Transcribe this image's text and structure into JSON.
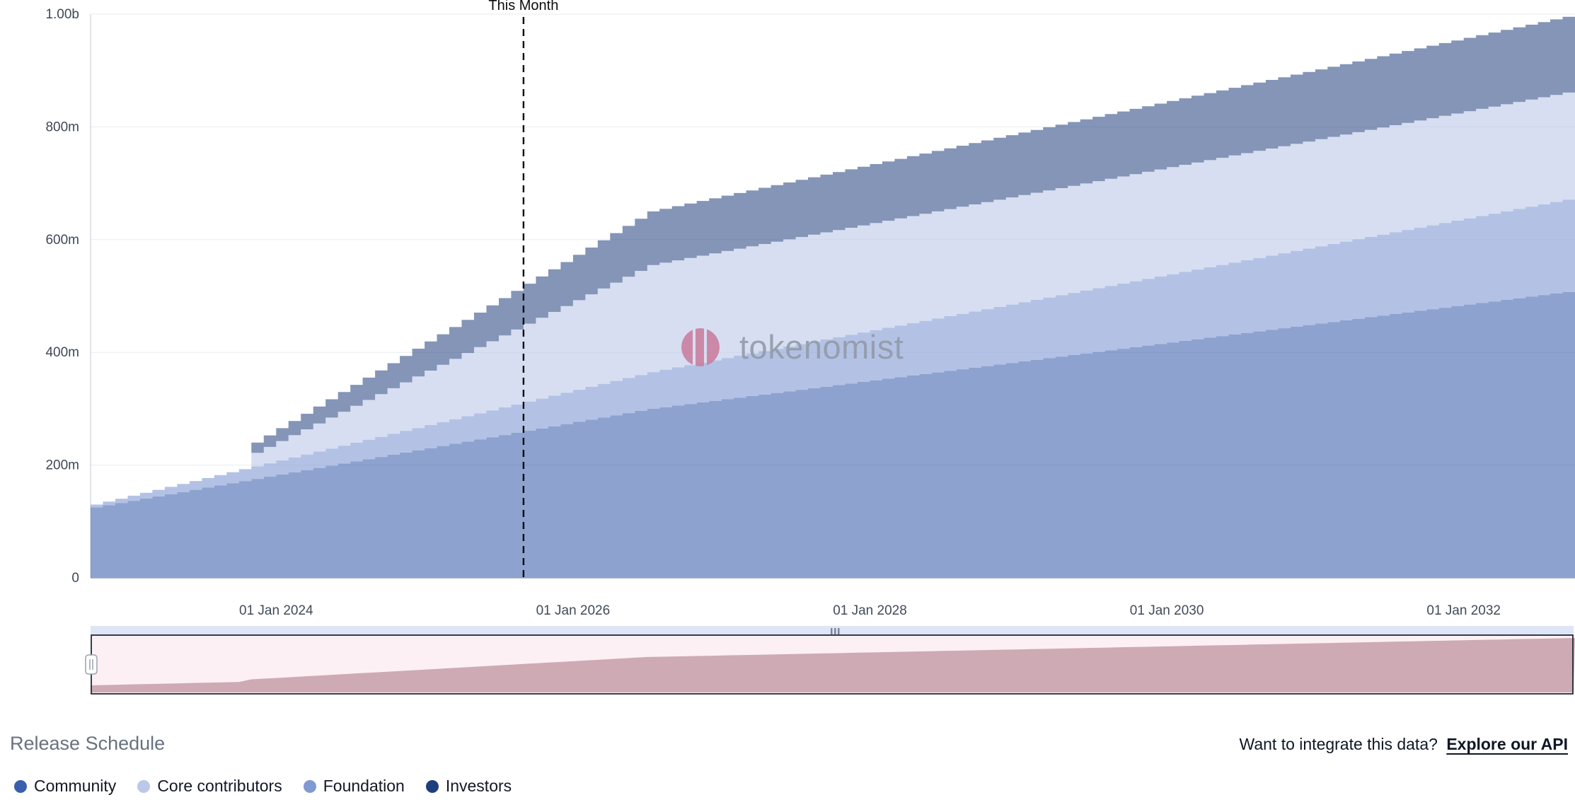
{
  "watermark": {
    "text": "tokenomist",
    "logo_color": "#cb7f9f",
    "text_color": "#929ba8"
  },
  "footer": {
    "release_schedule_label": "Release Schedule",
    "api_prompt": "Want to integrate this data?",
    "api_link_label": "Explore our API"
  },
  "legend": {
    "items": [
      {
        "label": "Community",
        "color": "#3a5fad"
      },
      {
        "label": "Core contributors",
        "color": "#bcc8ea"
      },
      {
        "label": "Foundation",
        "color": "#8199d2"
      },
      {
        "label": "Investors",
        "color": "#1f3e7c"
      }
    ]
  },
  "chart_data": {
    "type": "area",
    "variant": "stacked-step-monthly",
    "title": "",
    "xlabel": "",
    "ylabel": "",
    "unit": "tokens (millions)",
    "ylim": [
      0,
      1000
    ],
    "grid": "horizontal",
    "legend_position": "bottom",
    "y_ticks": [
      {
        "label": "0",
        "value": 0
      },
      {
        "label": "200m",
        "value": 200
      },
      {
        "label": "400m",
        "value": 400
      },
      {
        "label": "600m",
        "value": 600
      },
      {
        "label": "800m",
        "value": 800
      },
      {
        "label": "1.00b",
        "value": 1000
      }
    ],
    "x_ticks": [
      {
        "label": "01 Jan 2024",
        "month": 15
      },
      {
        "label": "01 Jan 2026",
        "month": 39
      },
      {
        "label": "01 Jan 2028",
        "month": 63
      },
      {
        "label": "01 Jan 2030",
        "month": 87
      },
      {
        "label": "01 Jan 2032",
        "month": 111
      }
    ],
    "x_range_months": {
      "start": "Oct 2022",
      "end": "Oct 2032",
      "months": 120
    },
    "this_month": {
      "label": "This Month",
      "month": 35
    },
    "stack_order": [
      "Community",
      "Foundation",
      "Core contributors",
      "Investors"
    ],
    "series": [
      {
        "name": "Community",
        "color": "#3a5fad",
        "fill_opacity": 0.58,
        "keyframes_month_value_millions": [
          [
            0,
            125
          ],
          [
            45,
            300
          ],
          [
            120,
            510
          ]
        ]
      },
      {
        "name": "Foundation",
        "color": "#8199d2",
        "fill_opacity": 0.6,
        "keyframes_month_value_millions": [
          [
            0,
            5
          ],
          [
            120,
            165
          ]
        ]
      },
      {
        "name": "Core contributors",
        "color": "#bcc8ea",
        "fill_opacity": 0.6,
        "keyframes_month_value_millions": [
          [
            0,
            0
          ],
          [
            12,
            0
          ],
          [
            13,
            24
          ],
          [
            45,
            190
          ],
          [
            120,
            190
          ]
        ]
      },
      {
        "name": "Investors",
        "color": "#1f3e7c",
        "fill_opacity": 0.55,
        "keyframes_month_value_millions": [
          [
            0,
            0
          ],
          [
            12,
            0
          ],
          [
            13,
            18
          ],
          [
            45,
            95
          ],
          [
            120,
            135
          ]
        ]
      }
    ]
  }
}
